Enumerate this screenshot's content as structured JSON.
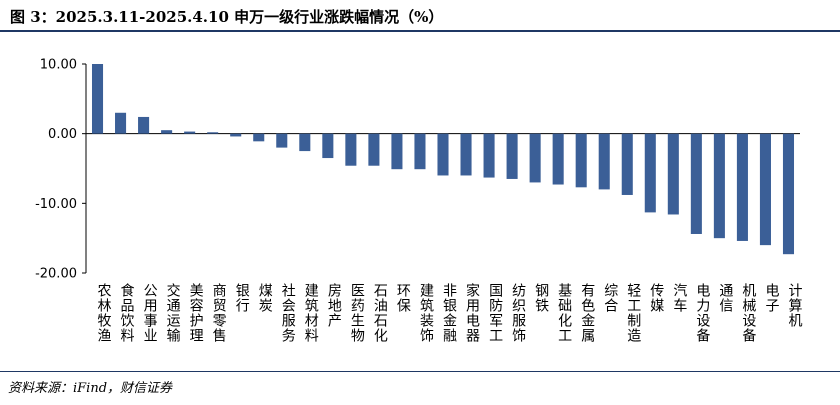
{
  "figure": {
    "title": "图 3：2025.3.11-2025.4.10 申万一级行业涨跌幅情况（%）",
    "source": "资料来源：iFind，财信证券"
  },
  "colors": {
    "bar": "#3b5f97",
    "axis": "#000000",
    "rule": "#1f3864"
  },
  "chart_data": {
    "type": "bar",
    "ylim": [
      -20,
      10
    ],
    "yticks": [
      "10.00",
      "0.00",
      "-10.00",
      "-20.00"
    ],
    "ytick_values": [
      10,
      0,
      -10,
      -20
    ],
    "grid": false,
    "categories": [
      "农林牧渔",
      "食品饮料",
      "公用事业",
      "交通运输",
      "美容护理",
      "商贸零售",
      "银行",
      "煤炭",
      "社会服务",
      "建筑材料",
      "房地产",
      "医药生物",
      "石油石化",
      "环保",
      "建筑装饰",
      "非银金融",
      "家用电器",
      "国防军工",
      "纺织服饰",
      "钢铁",
      "基础化工",
      "有色金属",
      "综合",
      "轻工制造",
      "传媒",
      "汽车",
      "电力设备",
      "通信",
      "机械设备",
      "电子",
      "计算机"
    ],
    "values": [
      10.0,
      3.0,
      2.4,
      0.5,
      0.3,
      0.2,
      -0.4,
      -1.1,
      -2.0,
      -2.5,
      -3.5,
      -4.6,
      -4.6,
      -5.1,
      -5.1,
      -6.0,
      -6.0,
      -6.3,
      -6.5,
      -7.0,
      -7.3,
      -7.7,
      -8.0,
      -8.8,
      -11.3,
      -11.6,
      -14.4,
      -15.0,
      -15.4,
      -16.0,
      -17.3
    ]
  }
}
